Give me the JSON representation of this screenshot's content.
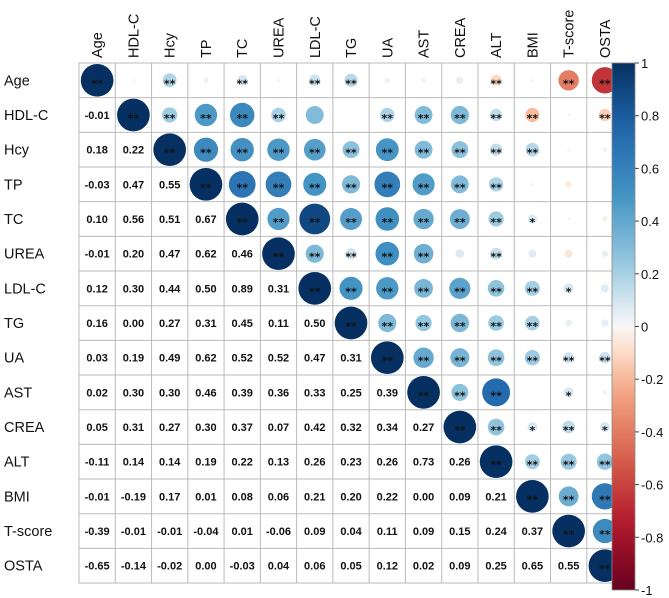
{
  "chart_data": {
    "type": "heatmap",
    "title": "",
    "variables": [
      "Age",
      "HDL-C",
      "Hcy",
      "TP",
      "TC",
      "UREA",
      "LDL-C",
      "TG",
      "UA",
      "AST",
      "CREA",
      "ALT",
      "BMI",
      "T-score",
      "OSTA"
    ],
    "lower_triangle_values": [
      [],
      [
        -0.01
      ],
      [
        0.18,
        0.22
      ],
      [
        -0.03,
        0.47,
        0.55
      ],
      [
        0.1,
        0.56,
        0.51,
        0.67
      ],
      [
        -0.01,
        0.2,
        0.47,
        0.62,
        0.46
      ],
      [
        0.12,
        0.3,
        0.44,
        0.5,
        0.89,
        0.31
      ],
      [
        0.16,
        0.0,
        0.27,
        0.31,
        0.45,
        0.11,
        0.5
      ],
      [
        0.03,
        0.19,
        0.49,
        0.62,
        0.52,
        0.52,
        0.47,
        0.31
      ],
      [
        0.02,
        0.3,
        0.3,
        0.46,
        0.39,
        0.36,
        0.33,
        0.25,
        0.39
      ],
      [
        0.05,
        0.31,
        0.27,
        0.3,
        0.37,
        0.07,
        0.42,
        0.32,
        0.34,
        0.27
      ],
      [
        -0.11,
        0.14,
        0.14,
        0.19,
        0.22,
        0.13,
        0.26,
        0.23,
        0.26,
        0.73,
        0.26
      ],
      [
        -0.01,
        -0.19,
        0.17,
        0.01,
        0.08,
        0.06,
        0.21,
        0.2,
        0.22,
        0.0,
        0.09,
        0.21
      ],
      [
        -0.39,
        -0.01,
        -0.01,
        -0.04,
        0.01,
        -0.06,
        0.09,
        0.04,
        0.11,
        0.09,
        0.15,
        0.24,
        0.37
      ],
      [
        -0.65,
        -0.14,
        -0.02,
        0.0,
        -0.03,
        0.04,
        0.06,
        0.05,
        0.12,
        0.02,
        0.09,
        0.25,
        0.65,
        0.55
      ]
    ],
    "upper_triangle_significance": [
      [
        "**",
        "",
        "**",
        "",
        "**",
        "",
        "**",
        "**",
        "",
        "",
        "",
        "**",
        "",
        "**",
        "**"
      ],
      [
        "**",
        "**",
        "**",
        "**",
        "**",
        "**",
        "",
        "",
        "**",
        "**",
        "**",
        "**",
        "**",
        "",
        "**"
      ],
      [
        "**",
        "**",
        "**",
        "**",
        "**",
        "**",
        "**",
        "**",
        "**",
        "**",
        "**",
        "**",
        "**",
        "",
        ""
      ],
      [
        "",
        "**",
        "**",
        "**",
        "**",
        "**",
        "**",
        "**",
        "**",
        "**",
        "**",
        "**",
        "",
        "",
        ""
      ],
      [
        "**",
        "**",
        "**",
        "**",
        "**",
        "**",
        "**",
        "**",
        "**",
        "**",
        "**",
        "**",
        "*",
        "",
        ""
      ],
      [
        "",
        "**",
        "**",
        "**",
        "**",
        "**",
        "**",
        "**",
        "**",
        "**",
        "",
        "**",
        "",
        "",
        ""
      ],
      [
        "**",
        "**",
        "**",
        "**",
        "**",
        "**",
        "**",
        "**",
        "**",
        "**",
        "**",
        "**",
        "**",
        "*",
        ""
      ],
      [
        "**",
        "",
        "**",
        "**",
        "**",
        "**",
        "**",
        "**",
        "**",
        "**",
        "**",
        "**",
        "**",
        "",
        ""
      ],
      [
        "",
        "**",
        "**",
        "**",
        "**",
        "**",
        "**",
        "**",
        "**",
        "**",
        "**",
        "**",
        "**",
        "**",
        "**"
      ],
      [
        "",
        "**",
        "**",
        "**",
        "**",
        "**",
        "**",
        "**",
        "**",
        "**",
        "**",
        "**",
        "",
        "*",
        ""
      ],
      [
        "",
        "**",
        "**",
        "**",
        "**",
        "",
        "**",
        "**",
        "**",
        "**",
        "**",
        "**",
        "*",
        "**",
        "*"
      ],
      [
        "**",
        "**",
        "**",
        "**",
        "**",
        "**",
        "**",
        "**",
        "**",
        "**",
        "**",
        "**",
        "**",
        "**",
        "**"
      ],
      [
        "",
        "**",
        "**",
        "",
        "",
        "",
        "**",
        "**",
        "**",
        "",
        "*",
        "**",
        "**",
        "**",
        "**"
      ],
      [
        "**",
        "",
        "",
        "",
        "",
        "",
        "*",
        "",
        "**",
        "*",
        "**",
        "**",
        "**",
        "**",
        "**"
      ],
      [
        "**",
        "**",
        "",
        "",
        "",
        "",
        "",
        "",
        "**",
        "",
        "*",
        "**",
        "**",
        "**",
        "**"
      ]
    ],
    "colorbar": {
      "min": -1,
      "max": 1,
      "ticks": [
        "1",
        "0.8",
        "0.6",
        "0.4",
        "0.2",
        "0",
        "-0.2",
        "-0.4",
        "-0.6",
        "-0.8",
        "-1"
      ]
    },
    "colors": {
      "low": "#67001f",
      "mid": "#ffffff",
      "high": "#053061",
      "grid": "#bbbbbb"
    }
  }
}
